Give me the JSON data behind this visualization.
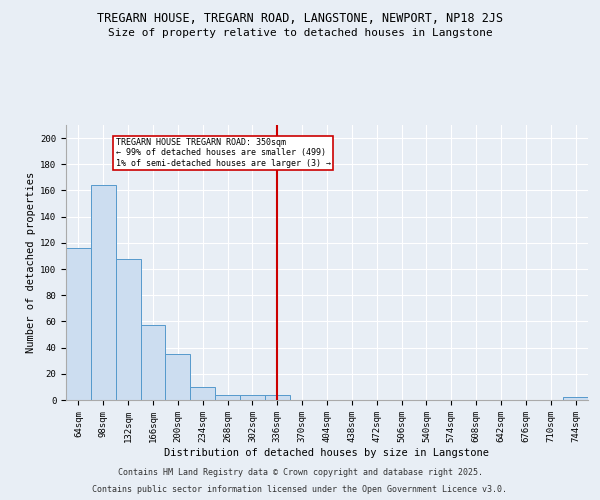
{
  "title_line1": "TREGARN HOUSE, TREGARN ROAD, LANGSTONE, NEWPORT, NP18 2JS",
  "title_line2": "Size of property relative to detached houses in Langstone",
  "xlabel": "Distribution of detached houses by size in Langstone",
  "ylabel": "Number of detached properties",
  "bins": [
    "64sqm",
    "98sqm",
    "132sqm",
    "166sqm",
    "200sqm",
    "234sqm",
    "268sqm",
    "302sqm",
    "336sqm",
    "370sqm",
    "404sqm",
    "438sqm",
    "472sqm",
    "506sqm",
    "540sqm",
    "574sqm",
    "608sqm",
    "642sqm",
    "676sqm",
    "710sqm",
    "744sqm"
  ],
  "values": [
    116,
    164,
    108,
    57,
    35,
    10,
    4,
    4,
    4,
    0,
    0,
    0,
    0,
    0,
    0,
    0,
    0,
    0,
    0,
    0,
    2
  ],
  "bar_color": "#ccddf0",
  "bar_edge_color": "#5599cc",
  "vline_x": 8.0,
  "vline_color": "#cc0000",
  "annotation_text": "TREGARN HOUSE TREGARN ROAD: 350sqm\n← 99% of detached houses are smaller (499)\n1% of semi-detached houses are larger (3) →",
  "annotation_box_color": "#ffffff",
  "annotation_box_edge": "#cc0000",
  "ylim": [
    0,
    210
  ],
  "yticks": [
    0,
    20,
    40,
    60,
    80,
    100,
    120,
    140,
    160,
    180,
    200
  ],
  "footer_line1": "Contains HM Land Registry data © Crown copyright and database right 2025.",
  "footer_line2": "Contains public sector information licensed under the Open Government Licence v3.0.",
  "bg_color": "#e8eef5",
  "plot_bg_color": "#e8eef5",
  "grid_color": "#ffffff",
  "title_fontsize": 8.5,
  "subtitle_fontsize": 8,
  "axis_label_fontsize": 7.5,
  "tick_fontsize": 6.5,
  "footer_fontsize": 6.0,
  "ann_fontsize": 6.0
}
